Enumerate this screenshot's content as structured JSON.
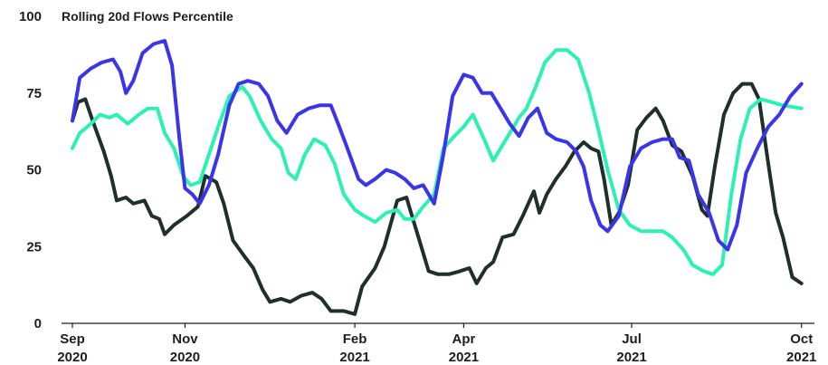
{
  "chart_data": {
    "type": "line",
    "title": "Rolling 20d Flows Percentile",
    "xlabel": "",
    "ylabel": "",
    "ylim": [
      0,
      100
    ],
    "yticks": [
      0,
      25,
      50,
      75,
      100
    ],
    "xlim": [
      "2020-09-01",
      "2021-10-08"
    ],
    "xticks": [
      {
        "date": "2020-09-01",
        "line1": "Sep",
        "line2": "2020"
      },
      {
        "date": "2020-11-01",
        "line1": "Nov",
        "line2": "2020"
      },
      {
        "date": "2021-02-01",
        "line1": "Feb",
        "line2": "2021"
      },
      {
        "date": "2021-04-01",
        "line1": "Apr",
        "line2": "2021"
      },
      {
        "date": "2021-07-01",
        "line1": "Jul",
        "line2": "2021"
      },
      {
        "date": "2021-10-01",
        "line1": "Oct",
        "line2": "2021"
      }
    ],
    "grid": false,
    "legend": "none",
    "series": [
      {
        "color": "#1f3028",
        "points": [
          [
            "2020-09-01",
            66
          ],
          [
            "2020-09-04",
            72
          ],
          [
            "2020-09-08",
            73
          ],
          [
            "2020-09-12",
            66
          ],
          [
            "2020-09-18",
            56
          ],
          [
            "2020-09-22",
            48
          ],
          [
            "2020-09-25",
            40
          ],
          [
            "2020-09-30",
            41
          ],
          [
            "2020-10-04",
            39
          ],
          [
            "2020-10-10",
            40
          ],
          [
            "2020-10-14",
            35
          ],
          [
            "2020-10-18",
            34
          ],
          [
            "2020-10-21",
            29
          ],
          [
            "2020-10-26",
            32
          ],
          [
            "2020-11-02",
            35
          ],
          [
            "2020-11-08",
            38
          ],
          [
            "2020-11-12",
            48
          ],
          [
            "2020-11-18",
            46
          ],
          [
            "2020-11-22",
            39
          ],
          [
            "2020-11-27",
            27
          ],
          [
            "2020-12-03",
            22
          ],
          [
            "2020-12-08",
            18
          ],
          [
            "2020-12-13",
            11
          ],
          [
            "2020-12-17",
            7
          ],
          [
            "2020-12-23",
            8
          ],
          [
            "2020-12-28",
            7
          ],
          [
            "2021-01-03",
            9
          ],
          [
            "2021-01-09",
            10
          ],
          [
            "2021-01-14",
            8
          ],
          [
            "2021-01-19",
            4
          ],
          [
            "2021-01-26",
            4
          ],
          [
            "2021-02-01",
            3
          ],
          [
            "2021-02-05",
            12
          ],
          [
            "2021-02-12",
            18
          ],
          [
            "2021-02-17",
            25
          ],
          [
            "2021-02-24",
            40
          ],
          [
            "2021-03-01",
            41
          ],
          [
            "2021-03-04",
            35
          ],
          [
            "2021-03-08",
            27
          ],
          [
            "2021-03-13",
            17
          ],
          [
            "2021-03-18",
            16
          ],
          [
            "2021-03-24",
            16
          ],
          [
            "2021-03-30",
            17
          ],
          [
            "2021-04-04",
            18
          ],
          [
            "2021-04-08",
            13
          ],
          [
            "2021-04-13",
            18
          ],
          [
            "2021-04-17",
            20
          ],
          [
            "2021-04-22",
            28
          ],
          [
            "2021-04-28",
            29
          ],
          [
            "2021-05-03",
            35
          ],
          [
            "2021-05-09",
            43
          ],
          [
            "2021-05-12",
            36
          ],
          [
            "2021-05-16",
            42
          ],
          [
            "2021-05-21",
            47
          ],
          [
            "2021-05-26",
            51
          ],
          [
            "2021-05-31",
            56
          ],
          [
            "2021-06-05",
            59
          ],
          [
            "2021-06-09",
            57
          ],
          [
            "2021-06-13",
            56
          ],
          [
            "2021-06-16",
            47
          ],
          [
            "2021-06-20",
            32
          ],
          [
            "2021-06-24",
            36
          ],
          [
            "2021-06-29",
            45
          ],
          [
            "2021-07-04",
            63
          ],
          [
            "2021-07-09",
            67
          ],
          [
            "2021-07-14",
            70
          ],
          [
            "2021-07-18",
            66
          ],
          [
            "2021-07-23",
            58
          ],
          [
            "2021-07-28",
            56
          ],
          [
            "2021-08-03",
            48
          ],
          [
            "2021-08-08",
            37
          ],
          [
            "2021-08-11",
            35
          ],
          [
            "2021-08-15",
            51
          ],
          [
            "2021-08-20",
            68
          ],
          [
            "2021-08-25",
            75
          ],
          [
            "2021-08-30",
            78
          ],
          [
            "2021-09-04",
            78
          ],
          [
            "2021-09-08",
            73
          ],
          [
            "2021-09-13",
            52
          ],
          [
            "2021-09-17",
            36
          ],
          [
            "2021-09-21",
            28
          ],
          [
            "2021-09-26",
            15
          ],
          [
            "2021-10-01",
            13
          ]
        ]
      },
      {
        "color": "#2cf0b4",
        "points": [
          [
            "2020-09-01",
            57
          ],
          [
            "2020-09-05",
            62
          ],
          [
            "2020-09-11",
            65
          ],
          [
            "2020-09-16",
            68
          ],
          [
            "2020-09-21",
            67
          ],
          [
            "2020-09-25",
            68
          ],
          [
            "2020-10-01",
            65
          ],
          [
            "2020-10-07",
            68
          ],
          [
            "2020-10-12",
            70
          ],
          [
            "2020-10-17",
            70
          ],
          [
            "2020-10-21",
            62
          ],
          [
            "2020-10-26",
            57
          ],
          [
            "2020-10-31",
            48
          ],
          [
            "2020-11-04",
            45
          ],
          [
            "2020-11-09",
            46
          ],
          [
            "2020-11-14",
            55
          ],
          [
            "2020-11-19",
            64
          ],
          [
            "2020-11-25",
            74
          ],
          [
            "2020-12-02",
            77
          ],
          [
            "2020-12-06",
            74
          ],
          [
            "2020-12-12",
            66
          ],
          [
            "2020-12-18",
            60
          ],
          [
            "2020-12-23",
            57
          ],
          [
            "2020-12-27",
            49
          ],
          [
            "2020-12-31",
            47
          ],
          [
            "2021-01-05",
            55
          ],
          [
            "2021-01-10",
            60
          ],
          [
            "2021-01-16",
            58
          ],
          [
            "2021-01-21",
            52
          ],
          [
            "2021-01-26",
            42
          ],
          [
            "2021-02-01",
            37
          ],
          [
            "2021-02-06",
            35
          ],
          [
            "2021-02-12",
            33
          ],
          [
            "2021-02-18",
            36
          ],
          [
            "2021-02-24",
            37
          ],
          [
            "2021-02-28",
            34
          ],
          [
            "2021-03-05",
            34
          ],
          [
            "2021-03-10",
            38
          ],
          [
            "2021-03-16",
            42
          ],
          [
            "2021-03-21",
            57
          ],
          [
            "2021-03-27",
            61
          ],
          [
            "2021-04-01",
            64
          ],
          [
            "2021-04-06",
            68
          ],
          [
            "2021-04-12",
            60
          ],
          [
            "2021-04-17",
            53
          ],
          [
            "2021-04-21",
            57
          ],
          [
            "2021-04-26",
            62
          ],
          [
            "2021-05-01",
            67
          ],
          [
            "2021-05-05",
            70
          ],
          [
            "2021-05-10",
            77
          ],
          [
            "2021-05-15",
            85
          ],
          [
            "2021-05-21",
            89
          ],
          [
            "2021-05-27",
            89
          ],
          [
            "2021-06-02",
            86
          ],
          [
            "2021-06-08",
            75
          ],
          [
            "2021-06-13",
            63
          ],
          [
            "2021-06-18",
            50
          ],
          [
            "2021-06-24",
            37
          ],
          [
            "2021-06-30",
            32
          ],
          [
            "2021-07-06",
            30
          ],
          [
            "2021-07-12",
            30
          ],
          [
            "2021-07-18",
            30
          ],
          [
            "2021-07-23",
            28
          ],
          [
            "2021-07-29",
            24
          ],
          [
            "2021-08-03",
            19
          ],
          [
            "2021-08-09",
            17
          ],
          [
            "2021-08-14",
            16
          ],
          [
            "2021-08-19",
            19
          ],
          [
            "2021-08-24",
            42
          ],
          [
            "2021-08-29",
            60
          ],
          [
            "2021-09-03",
            70
          ],
          [
            "2021-09-09",
            73
          ],
          [
            "2021-09-15",
            72
          ],
          [
            "2021-09-21",
            71
          ],
          [
            "2021-10-01",
            70
          ]
        ]
      },
      {
        "color": "#3b35e8",
        "points": [
          [
            "2020-09-01",
            66
          ],
          [
            "2020-09-05",
            80
          ],
          [
            "2020-09-11",
            83
          ],
          [
            "2020-09-17",
            85
          ],
          [
            "2020-09-23",
            86
          ],
          [
            "2020-09-27",
            82
          ],
          [
            "2020-09-30",
            75
          ],
          [
            "2020-10-04",
            79
          ],
          [
            "2020-10-09",
            88
          ],
          [
            "2020-10-15",
            91
          ],
          [
            "2020-10-21",
            92
          ],
          [
            "2020-10-25",
            84
          ],
          [
            "2020-10-29",
            60
          ],
          [
            "2020-11-01",
            44
          ],
          [
            "2020-11-05",
            42
          ],
          [
            "2020-11-09",
            39
          ],
          [
            "2020-11-14",
            45
          ],
          [
            "2020-11-19",
            55
          ],
          [
            "2020-11-25",
            71
          ],
          [
            "2020-11-30",
            78
          ],
          [
            "2020-12-05",
            79
          ],
          [
            "2020-12-11",
            78
          ],
          [
            "2020-12-16",
            74
          ],
          [
            "2020-12-21",
            66
          ],
          [
            "2020-12-26",
            62
          ],
          [
            "2021-01-01",
            68
          ],
          [
            "2021-01-07",
            70
          ],
          [
            "2021-01-13",
            71
          ],
          [
            "2021-01-19",
            71
          ],
          [
            "2021-01-23",
            65
          ],
          [
            "2021-01-28",
            57
          ],
          [
            "2021-02-03",
            47
          ],
          [
            "2021-02-07",
            45
          ],
          [
            "2021-02-12",
            47
          ],
          [
            "2021-02-18",
            50
          ],
          [
            "2021-02-23",
            49
          ],
          [
            "2021-02-28",
            47
          ],
          [
            "2021-03-05",
            44
          ],
          [
            "2021-03-10",
            45
          ],
          [
            "2021-03-16",
            39
          ],
          [
            "2021-03-21",
            55
          ],
          [
            "2021-03-26",
            74
          ],
          [
            "2021-04-01",
            81
          ],
          [
            "2021-04-06",
            80
          ],
          [
            "2021-04-11",
            75
          ],
          [
            "2021-04-16",
            75
          ],
          [
            "2021-04-21",
            70
          ],
          [
            "2021-04-26",
            65
          ],
          [
            "2021-05-01",
            61
          ],
          [
            "2021-05-06",
            67
          ],
          [
            "2021-05-11",
            70
          ],
          [
            "2021-05-16",
            62
          ],
          [
            "2021-05-21",
            60
          ],
          [
            "2021-05-27",
            59
          ],
          [
            "2021-06-01",
            56
          ],
          [
            "2021-06-05",
            51
          ],
          [
            "2021-06-09",
            40
          ],
          [
            "2021-06-14",
            32
          ],
          [
            "2021-06-18",
            30
          ],
          [
            "2021-06-24",
            35
          ],
          [
            "2021-06-30",
            51
          ],
          [
            "2021-07-06",
            57
          ],
          [
            "2021-07-12",
            59
          ],
          [
            "2021-07-18",
            60
          ],
          [
            "2021-07-23",
            60
          ],
          [
            "2021-07-27",
            54
          ],
          [
            "2021-08-01",
            53
          ],
          [
            "2021-08-06",
            42
          ],
          [
            "2021-08-12",
            36
          ],
          [
            "2021-08-17",
            27
          ],
          [
            "2021-08-22",
            24
          ],
          [
            "2021-08-27",
            32
          ],
          [
            "2021-09-01",
            49
          ],
          [
            "2021-09-07",
            57
          ],
          [
            "2021-09-13",
            64
          ],
          [
            "2021-09-19",
            68
          ],
          [
            "2021-09-25",
            74
          ],
          [
            "2021-10-01",
            78
          ]
        ]
      }
    ]
  }
}
